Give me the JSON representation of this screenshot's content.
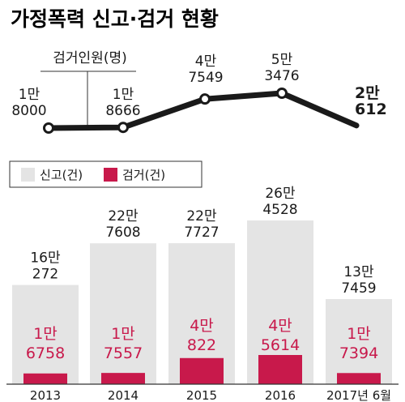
{
  "title": "가정폭력 신고·검거 현황",
  "chart_data": [
    {
      "type": "line",
      "series": [
        {
          "name": "검거인원(명)",
          "values": [
            18000,
            18666,
            47549,
            53476,
            20612
          ]
        }
      ],
      "categories": [
        "2013",
        "2014",
        "2015",
        "2016",
        "2017년 6월"
      ],
      "point_labels": [
        [
          "1만",
          "8000"
        ],
        [
          "1만",
          "8666"
        ],
        [
          "4만",
          "7549"
        ],
        [
          "5만",
          "3476"
        ],
        [
          "2만",
          "612"
        ]
      ],
      "ylabel": "검거인원(명)"
    },
    {
      "type": "bar",
      "categories": [
        "2013",
        "2014",
        "2015",
        "2016",
        "2017년 6월"
      ],
      "series": [
        {
          "name": "신고(건)",
          "color": "#e4e4e4",
          "values": [
            160272,
            227608,
            227727,
            264528,
            137459
          ],
          "labels": [
            [
              "16만",
              "272"
            ],
            [
              "22만",
              "7608"
            ],
            [
              "22만",
              "7727"
            ],
            [
              "26만",
              "4528"
            ],
            [
              "13만",
              "7459"
            ]
          ]
        },
        {
          "name": "검거(건)",
          "color": "#c8194b",
          "values": [
            16758,
            17557,
            40822,
            45614,
            17394
          ],
          "labels": [
            [
              "1만",
              "6758"
            ],
            [
              "1만",
              "7557"
            ],
            [
              "4만",
              "822"
            ],
            [
              "4만",
              "5614"
            ],
            [
              "1만",
              "7394"
            ]
          ]
        }
      ],
      "legend": {
        "position": "top-left",
        "items": [
          "신고(건)",
          "검거(건)"
        ]
      }
    }
  ]
}
